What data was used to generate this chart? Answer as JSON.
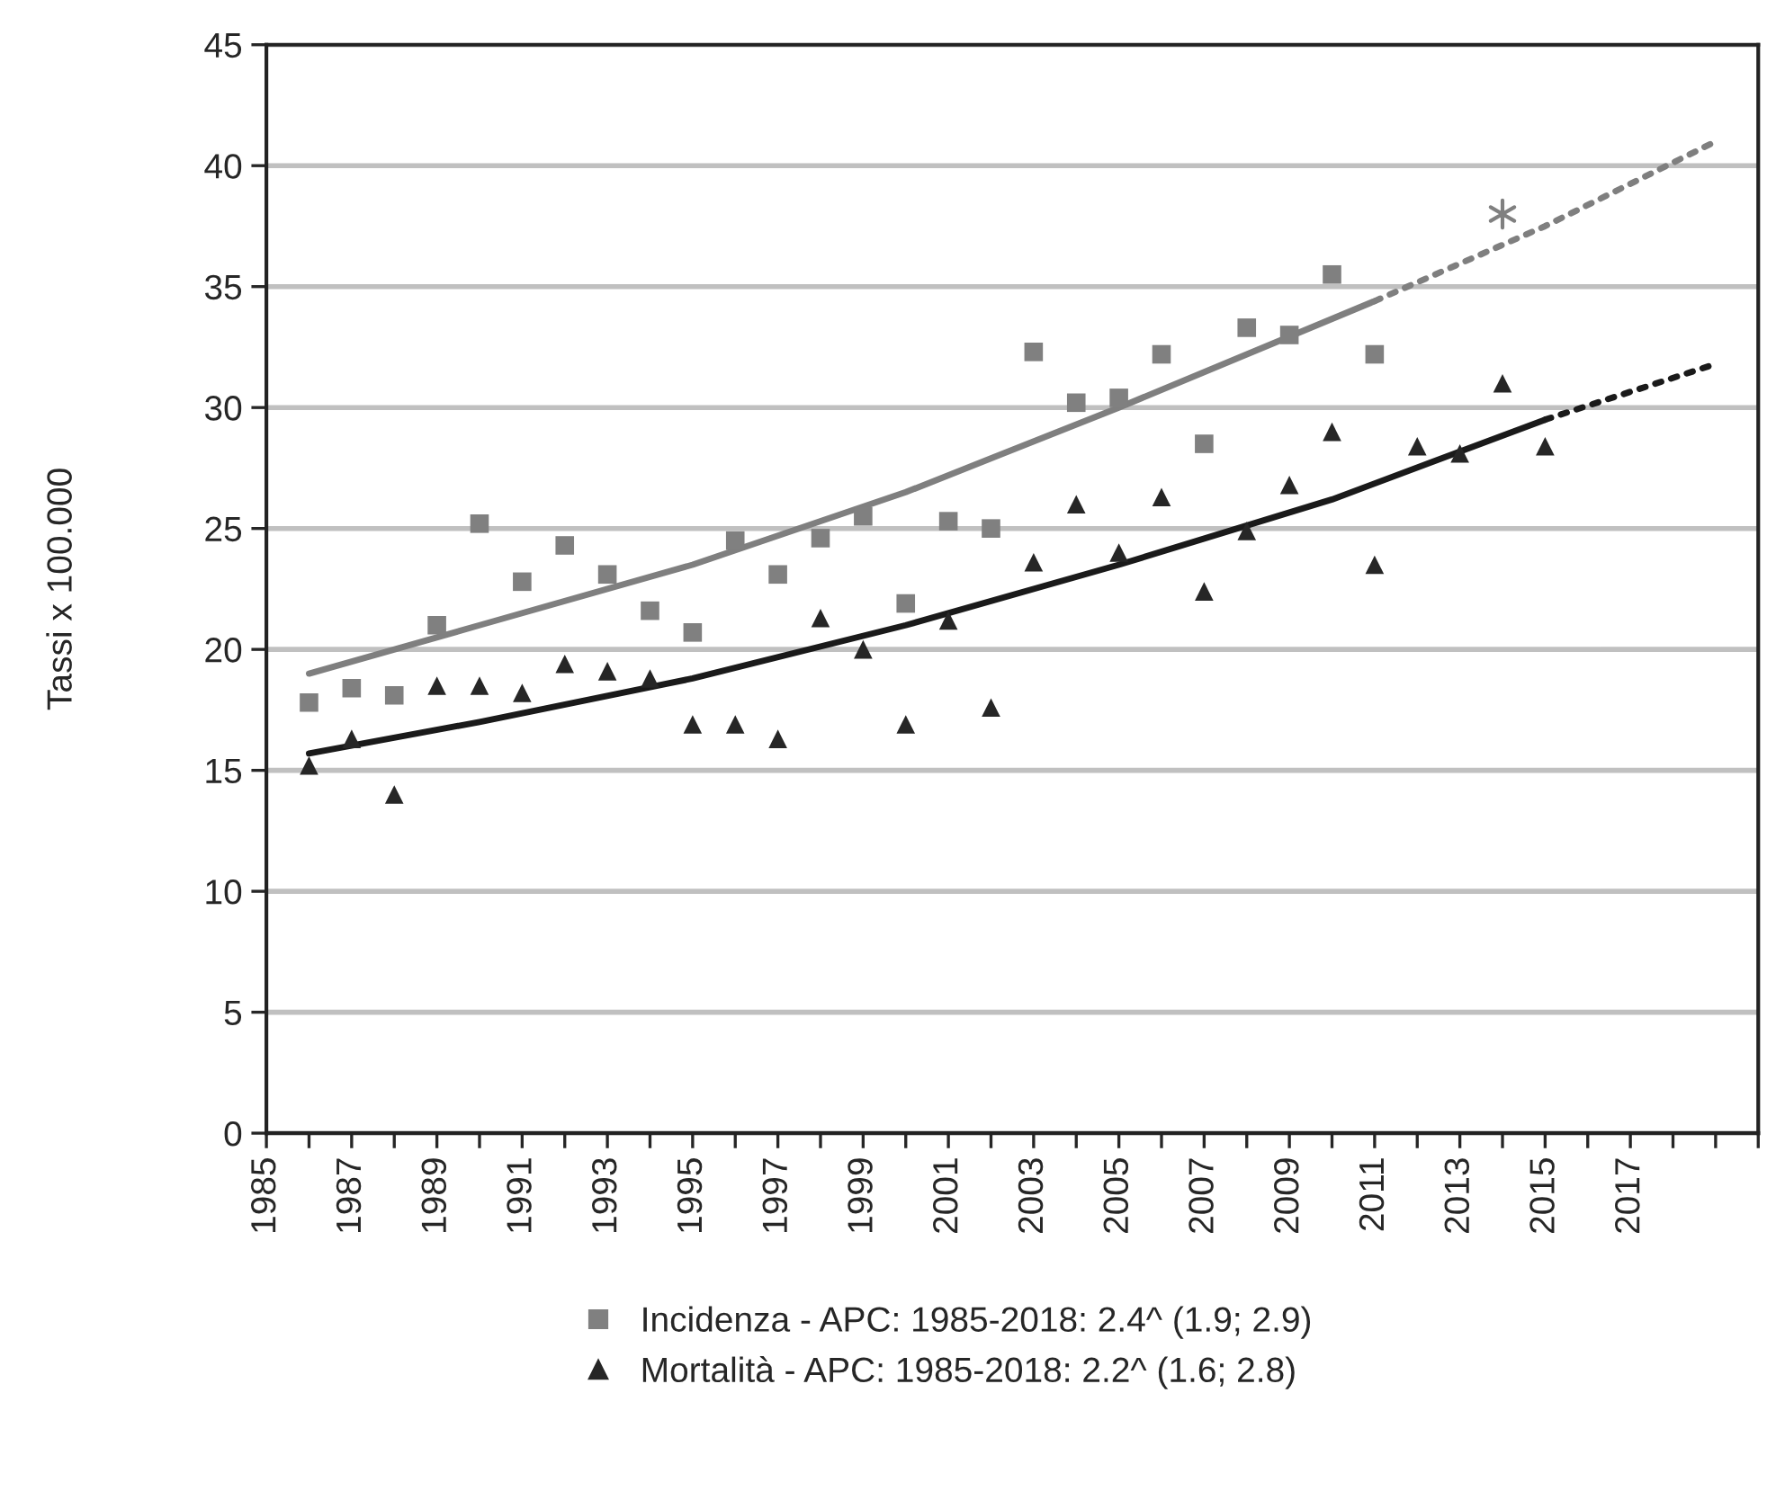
{
  "chart_data": {
    "type": "scatter",
    "ylabel": "Tassi x 100.000",
    "xlim": [
      1985,
      2020
    ],
    "ylim": [
      0,
      45
    ],
    "yticks": [
      0,
      5,
      10,
      15,
      20,
      25,
      30,
      35,
      40,
      45
    ],
    "xticks": [
      1985,
      {
        "value": 1986,
        "label": null
      },
      1987,
      {
        "value": 1988,
        "label": null
      },
      1989,
      {
        "value": 1990,
        "label": null
      },
      1991,
      {
        "value": 1992,
        "label": null
      },
      1993,
      {
        "value": 1994,
        "label": null
      },
      1995,
      {
        "value": 1996,
        "label": null
      },
      1997,
      {
        "value": 1998,
        "label": null
      },
      1999,
      {
        "value": 2000,
        "label": null
      },
      2001,
      {
        "value": 2002,
        "label": null
      },
      2003,
      {
        "value": 2004,
        "label": null
      },
      2005,
      {
        "value": 2006,
        "label": null
      },
      2007,
      {
        "value": 2008,
        "label": null
      },
      2009,
      {
        "value": 2010,
        "label": null
      },
      2011,
      {
        "value": 2012,
        "label": null
      },
      2013,
      {
        "value": 2014,
        "label": null
      },
      2015,
      {
        "value": 2016,
        "label": null
      },
      2017,
      {
        "value": 2018,
        "label": null
      },
      {
        "value": 2019,
        "label": null
      },
      {
        "value": 2020,
        "label": null
      }
    ],
    "grid": "y",
    "legend": "bottom",
    "series": [
      {
        "name": "Incidenza - APC: 1985-2018: 2.4^ (1.9; 2.9)",
        "marker": "square",
        "color": "#808080",
        "x": [
          1986,
          1987,
          1988,
          1989,
          1990,
          1991,
          1992,
          1993,
          1994,
          1995,
          1996,
          1997,
          1998,
          1999,
          2000,
          2001,
          2002,
          2003,
          2004,
          2005,
          2006,
          2007,
          2008,
          2009,
          2010,
          2011
        ],
        "values": [
          17.8,
          18.4,
          18.1,
          21.0,
          25.2,
          22.8,
          24.3,
          23.1,
          21.6,
          20.7,
          24.5,
          23.1,
          24.6,
          25.5,
          21.9,
          25.3,
          25.0,
          32.3,
          30.2,
          30.4,
          32.2,
          28.5,
          33.3,
          33.0,
          35.5,
          32.2
        ]
      },
      {
        "name": "Mortalità - APC: 1985-2018: 2.2^ (1.6; 2.8)",
        "marker": "triangle",
        "color": "#262626",
        "x": [
          1986,
          1987,
          1988,
          1989,
          1990,
          1991,
          1992,
          1993,
          1994,
          1995,
          1996,
          1997,
          1998,
          1999,
          2000,
          2001,
          2002,
          2003,
          2004,
          2005,
          2006,
          2007,
          2008,
          2009,
          2010,
          2011,
          2012,
          2013,
          2014,
          2015
        ],
        "values": [
          15.2,
          16.3,
          14.0,
          18.5,
          18.5,
          18.2,
          19.4,
          19.1,
          18.8,
          16.9,
          16.9,
          16.3,
          21.3,
          20.0,
          16.9,
          21.2,
          17.6,
          23.6,
          26.0,
          24.0,
          26.3,
          22.4,
          24.9,
          26.8,
          29.0,
          23.5,
          28.4,
          28.1,
          31.0,
          28.4
        ]
      },
      {
        "marker": "cross",
        "color": "#808080",
        "x": [
          2014
        ],
        "values": [
          38.0
        ]
      },
      {
        "type": "line",
        "line_style": "solid",
        "marker": "none",
        "color": "#7f7f7f",
        "x": [
          1986,
          1990,
          1995,
          2000,
          2005,
          2011
        ],
        "values": [
          19.0,
          21.0,
          23.5,
          26.5,
          30.0,
          34.4
        ]
      },
      {
        "type": "line",
        "line_style": "dotted",
        "marker": "none",
        "color": "#7f7f7f",
        "x": [
          2011,
          2015,
          2019
        ],
        "values": [
          34.4,
          37.5,
          41.0
        ]
      },
      {
        "type": "line",
        "line_style": "solid",
        "marker": "none",
        "color": "#1a1a1a",
        "x": [
          1986,
          1990,
          1995,
          2000,
          2005,
          2010,
          2015
        ],
        "values": [
          15.7,
          17.0,
          18.8,
          21.0,
          23.5,
          26.2,
          29.5
        ]
      },
      {
        "type": "line",
        "line_style": "dotted",
        "marker": "none",
        "color": "#1a1a1a",
        "x": [
          2015,
          2019
        ],
        "values": [
          29.5,
          31.8
        ]
      }
    ]
  }
}
